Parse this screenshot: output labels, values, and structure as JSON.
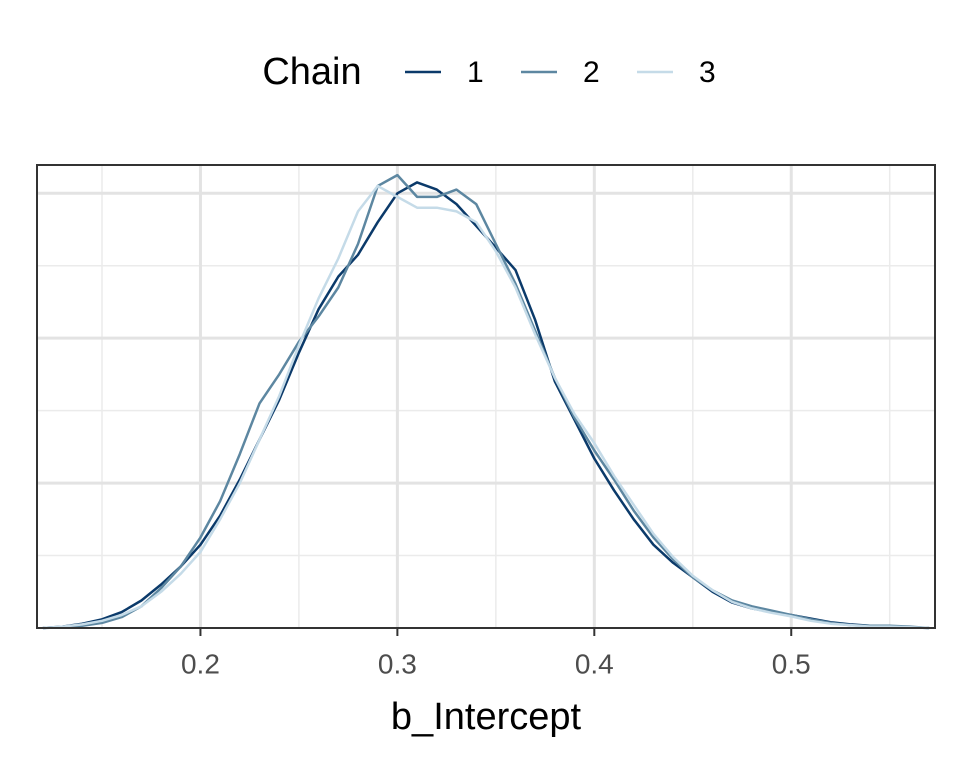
{
  "chart_data": {
    "type": "line",
    "x_label": "b_Intercept",
    "legend_title": "Chain",
    "x": [
      0.12,
      0.13,
      0.14,
      0.15,
      0.16,
      0.17,
      0.18,
      0.19,
      0.2,
      0.21,
      0.22,
      0.23,
      0.24,
      0.25,
      0.26,
      0.27,
      0.28,
      0.29,
      0.3,
      0.31,
      0.32,
      0.33,
      0.34,
      0.35,
      0.36,
      0.37,
      0.38,
      0.39,
      0.4,
      0.41,
      0.42,
      0.43,
      0.44,
      0.45,
      0.46,
      0.47,
      0.48,
      0.49,
      0.5,
      0.51,
      0.52,
      0.53,
      0.54,
      0.55,
      0.56,
      0.57
    ],
    "series": [
      {
        "name": "1",
        "color": "#0b3a6a",
        "values": [
          0,
          0.02,
          0.06,
          0.12,
          0.22,
          0.38,
          0.6,
          0.85,
          1.15,
          1.55,
          2.05,
          2.6,
          3.15,
          3.8,
          4.4,
          4.85,
          5.15,
          5.6,
          6.0,
          6.15,
          6.05,
          5.85,
          5.55,
          5.25,
          4.94,
          4.25,
          3.4,
          2.87,
          2.34,
          1.9,
          1.5,
          1.15,
          0.9,
          0.7,
          0.5,
          0.35,
          0.27,
          0.22,
          0.18,
          0.13,
          0.08,
          0.05,
          0.03,
          0.02,
          0.01,
          0
        ]
      },
      {
        "name": "2",
        "color": "#5d87a1",
        "values": [
          0,
          0.01,
          0.03,
          0.07,
          0.15,
          0.3,
          0.55,
          0.85,
          1.25,
          1.75,
          2.4,
          3.1,
          3.5,
          3.95,
          4.3,
          4.7,
          5.3,
          6.1,
          6.25,
          5.95,
          5.95,
          6.05,
          5.85,
          5.3,
          4.75,
          4.1,
          3.45,
          2.9,
          2.45,
          2.05,
          1.62,
          1.25,
          0.95,
          0.7,
          0.52,
          0.38,
          0.3,
          0.24,
          0.18,
          0.12,
          0.07,
          0.04,
          0.03,
          0.03,
          0.02,
          0
        ]
      },
      {
        "name": "3",
        "color": "#c5dbe8",
        "values": [
          0,
          0.02,
          0.05,
          0.1,
          0.18,
          0.3,
          0.5,
          0.75,
          1.05,
          1.5,
          2.0,
          2.6,
          3.2,
          3.9,
          4.55,
          5.1,
          5.75,
          6.1,
          5.95,
          5.8,
          5.8,
          5.75,
          5.6,
          5.2,
          4.7,
          4.05,
          3.45,
          2.95,
          2.55,
          2.1,
          1.7,
          1.3,
          0.98,
          0.72,
          0.52,
          0.36,
          0.27,
          0.21,
          0.16,
          0.1,
          0.06,
          0.04,
          0.02,
          0.02,
          0.01,
          0
        ]
      }
    ],
    "xlim": [
      0.117,
      0.573
    ],
    "xticks": [
      0.2,
      0.3,
      0.4,
      0.5
    ],
    "xminor": [
      0.15,
      0.25,
      0.35,
      0.45,
      0.55
    ],
    "ylim": [
      0,
      6.39
    ],
    "yticks": [
      2,
      4,
      6
    ],
    "yminor": [
      1,
      3,
      5
    ],
    "grid": true,
    "legend_position": "top"
  }
}
